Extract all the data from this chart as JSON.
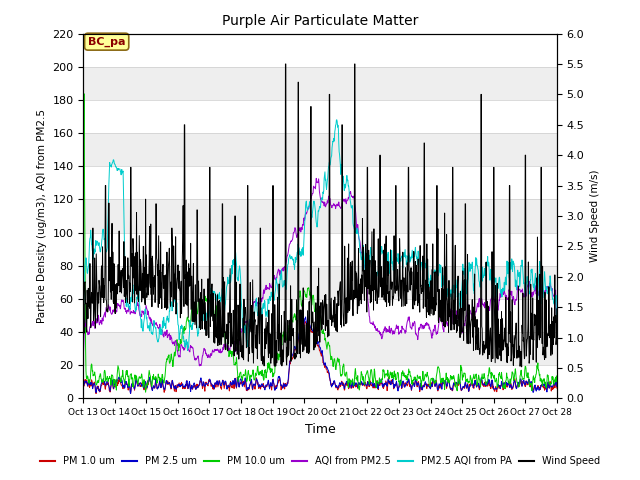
{
  "title": "Purple Air Particulate Matter",
  "xlabel": "Time",
  "ylabel_left": "Particle Density (ug/m3), AQI from PM2.5",
  "ylabel_right": "Wind Speed (m/s)",
  "ylim_left": [
    0,
    220
  ],
  "ylim_right": [
    0.0,
    6.0
  ],
  "yticks_left": [
    0,
    20,
    40,
    60,
    80,
    100,
    120,
    140,
    160,
    180,
    200,
    220
  ],
  "yticks_right": [
    0.0,
    0.5,
    1.0,
    1.5,
    2.0,
    2.5,
    3.0,
    3.5,
    4.0,
    4.5,
    5.0,
    5.5,
    6.0
  ],
  "xtick_labels": [
    "Oct 13",
    "Oct 14",
    "Oct 15",
    "Oct 16",
    "Oct 17",
    "Oct 18",
    "Oct 19",
    "Oct 20",
    "Oct 21",
    "Oct 22",
    "Oct 23",
    "Oct 24",
    "Oct 25",
    "Oct 26",
    "Oct 27",
    "Oct 28"
  ],
  "annotation_text": "BC_pa",
  "colors": {
    "pm1": "#cc0000",
    "pm25": "#0000cc",
    "pm10": "#00cc00",
    "aqi_pm25": "#9900cc",
    "pm25_aqi_pa": "#00cccc",
    "wind": "#000000"
  },
  "legend_labels": [
    "PM 1.0 um",
    "PM 2.5 um",
    "PM 10.0 um",
    "AQI from PM2.5",
    "PM2.5 AQI from PA",
    "Wind Speed"
  ],
  "bg_bands": [
    {
      "ymin": 0,
      "ymax": 20,
      "color": "#ffffff"
    },
    {
      "ymin": 20,
      "ymax": 40,
      "color": "#eeeeee"
    },
    {
      "ymin": 40,
      "ymax": 60,
      "color": "#ffffff"
    },
    {
      "ymin": 60,
      "ymax": 80,
      "color": "#eeeeee"
    },
    {
      "ymin": 80,
      "ymax": 100,
      "color": "#ffffff"
    },
    {
      "ymin": 100,
      "ymax": 120,
      "color": "#eeeeee"
    },
    {
      "ymin": 120,
      "ymax": 140,
      "color": "#ffffff"
    },
    {
      "ymin": 140,
      "ymax": 160,
      "color": "#eeeeee"
    },
    {
      "ymin": 160,
      "ymax": 180,
      "color": "#ffffff"
    },
    {
      "ymin": 180,
      "ymax": 200,
      "color": "#eeeeee"
    },
    {
      "ymin": 200,
      "ymax": 220,
      "color": "#ffffff"
    }
  ],
  "n_points": 1200,
  "seed": 12345
}
